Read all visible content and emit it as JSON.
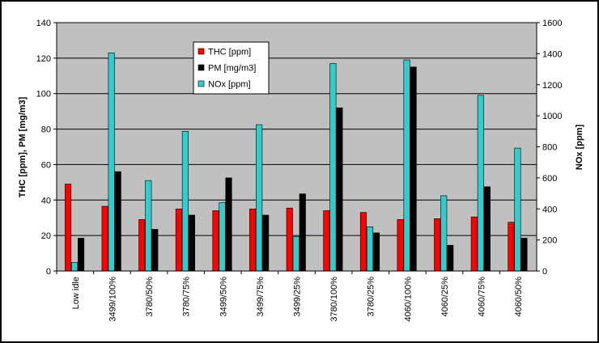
{
  "chart_data": {
    "type": "bar",
    "categories": [
      "Low idle",
      "3499/100%",
      "3780/50%",
      "3780/75%",
      "3499/50%",
      "3499/75%",
      "3499/25%",
      "3780/100%",
      "3780/25%",
      "4060/100%",
      "4060/25%",
      "4060/75%",
      "4060/50%"
    ],
    "series": [
      {
        "name": "THC [ppm]",
        "axis": "left",
        "color": "#ff0000",
        "values": [
          49,
          36.5,
          29,
          35,
          34,
          35,
          35.5,
          34,
          33,
          29,
          29.5,
          30.5,
          27.5
        ]
      },
      {
        "name": "PM [mg/m3]",
        "axis": "left",
        "color": "#000000",
        "values": [
          18.5,
          56,
          23.5,
          31.5,
          52.5,
          31.5,
          43.5,
          92,
          21.5,
          115,
          14.5,
          47.5,
          18.5
        ]
      },
      {
        "name": "NOx [ppm]",
        "axis": "right",
        "color": "#33cccc",
        "values": [
          55,
          1405,
          583,
          900,
          440,
          943,
          222,
          1337,
          285,
          1360,
          485,
          1132,
          792
        ]
      }
    ],
    "ylabel": "THC [ppm], PM [mg/m3]",
    "y2label": "NOx [ppm]",
    "ylim": [
      0,
      140
    ],
    "y2lim": [
      0,
      1600
    ],
    "yticks": [
      "0",
      "20",
      "40",
      "60",
      "80",
      "100",
      "120",
      "140"
    ],
    "y2ticks": [
      "0",
      "200",
      "400",
      "600",
      "800",
      "1000",
      "1200",
      "1400",
      "1600"
    ],
    "grid": true,
    "plot_background": "#c0c0c0",
    "legend_position": "top-center"
  }
}
